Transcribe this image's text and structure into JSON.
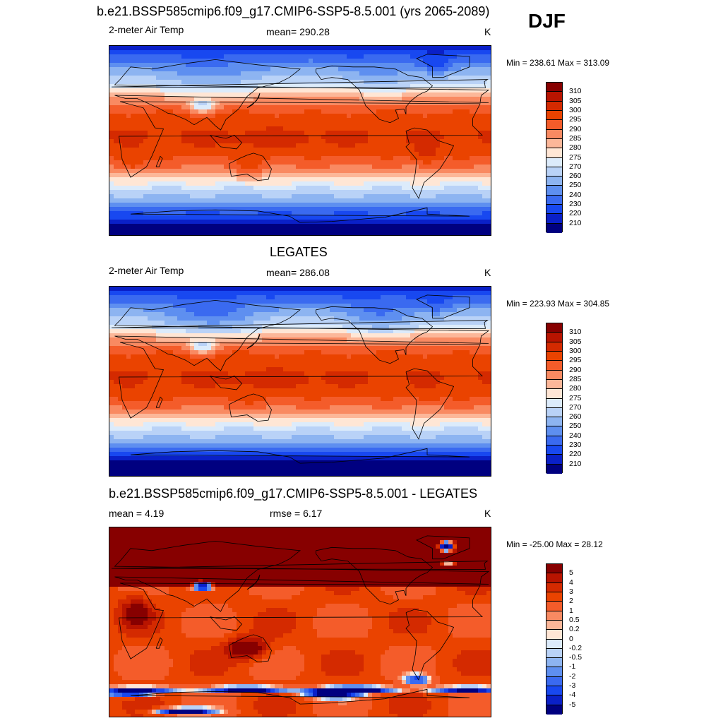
{
  "header": {
    "title": "b.e21.BSSP585cmip6.f09_g17.CMIP6-SSP5-8.5.001 (yrs 2065-2089)",
    "season": "DJF"
  },
  "panels": [
    {
      "id": "model",
      "section_title": "",
      "left_label": "2-meter Air Temp",
      "center_label": "mean= 290.28",
      "units": "K",
      "minmax": "Min = 238.61 Max = 313.09",
      "field": "model"
    },
    {
      "id": "obs",
      "section_title": "LEGATES",
      "left_label": "2-meter Air Temp",
      "center_label": "mean= 286.08",
      "units": "K",
      "minmax": "Min = 223.93 Max = 304.85",
      "field": "obs"
    },
    {
      "id": "diff",
      "section_title": "b.e21.BSSP585cmip6.f09_g17.CMIP6-SSP5-8.5.001 - LEGATES",
      "left_label": "mean =   4.19",
      "center_label": "rmse =   6.17",
      "units": "K",
      "minmax": "Min = -25.00 Max =  28.12",
      "field": "diff"
    }
  ],
  "colorbars": {
    "temp": {
      "labels": [
        "310",
        "305",
        "300",
        "295",
        "290",
        "285",
        "280",
        "275",
        "270",
        "260",
        "250",
        "240",
        "230",
        "220",
        "210"
      ],
      "colors": [
        "#870000",
        "#b81400",
        "#d42a00",
        "#ea4300",
        "#f45c2a",
        "#f98a62",
        "#fcb799",
        "#ffe6d5",
        "#dcebfb",
        "#b9d2f7",
        "#8db4f1",
        "#5e8ff0",
        "#3a6af0",
        "#1848f0",
        "#0a20c8",
        "#000080"
      ]
    },
    "diff": {
      "labels": [
        "5",
        "4",
        "3",
        "2",
        "1",
        "0.5",
        "0.2",
        "0",
        "-0.2",
        "-0.5",
        "-1",
        "-2",
        "-3",
        "-4",
        "-5"
      ],
      "colors": [
        "#870000",
        "#b81400",
        "#d42a00",
        "#ea4300",
        "#f45c2a",
        "#f98a62",
        "#fcb799",
        "#ffe6d5",
        "#dcebfb",
        "#b9d2f7",
        "#8db4f1",
        "#5e8ff0",
        "#3a6af0",
        "#1848f0",
        "#0a20c8",
        "#000080"
      ]
    }
  }
}
